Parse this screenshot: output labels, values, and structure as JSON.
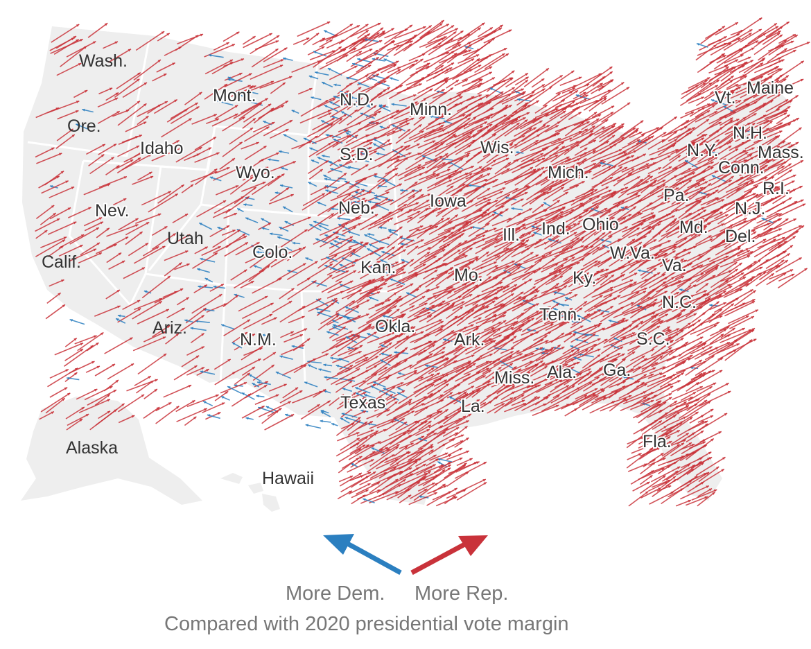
{
  "colors": {
    "land": "#eeeeee",
    "border": "#ffffff",
    "rep": "#c9323a",
    "dem": "#2b7fc0",
    "label": "#333333",
    "caption": "#777777"
  },
  "states": [
    {
      "name": "Wash."
    },
    {
      "name": "Ore."
    },
    {
      "name": "Calif."
    },
    {
      "name": "Nev."
    },
    {
      "name": "Idaho"
    },
    {
      "name": "Mont."
    },
    {
      "name": "Wyo."
    },
    {
      "name": "Utah"
    },
    {
      "name": "Ariz."
    },
    {
      "name": "Colo."
    },
    {
      "name": "N.M."
    },
    {
      "name": "N.D."
    },
    {
      "name": "S.D."
    },
    {
      "name": "Neb."
    },
    {
      "name": "Kan."
    },
    {
      "name": "Okla."
    },
    {
      "name": "Texas"
    },
    {
      "name": "Minn."
    },
    {
      "name": "Iowa"
    },
    {
      "name": "Mo."
    },
    {
      "name": "Ark."
    },
    {
      "name": "La."
    },
    {
      "name": "Wis."
    },
    {
      "name": "Ill."
    },
    {
      "name": "Mich."
    },
    {
      "name": "Ind."
    },
    {
      "name": "Ohio"
    },
    {
      "name": "Ky."
    },
    {
      "name": "Tenn."
    },
    {
      "name": "Miss."
    },
    {
      "name": "Ala."
    },
    {
      "name": "Ga."
    },
    {
      "name": "Fla."
    },
    {
      "name": "S.C."
    },
    {
      "name": "N.C."
    },
    {
      "name": "Va."
    },
    {
      "name": "W.Va."
    },
    {
      "name": "Md."
    },
    {
      "name": "Del."
    },
    {
      "name": "Pa."
    },
    {
      "name": "N.J."
    },
    {
      "name": "N.Y."
    },
    {
      "name": "Conn."
    },
    {
      "name": "R.I."
    },
    {
      "name": "Mass."
    },
    {
      "name": "Vt."
    },
    {
      "name": "N.H."
    },
    {
      "name": "Maine"
    },
    {
      "name": "Alaska"
    },
    {
      "name": "Hawaii"
    }
  ],
  "legend": {
    "dem_label": "More Dem.",
    "rep_label": "More Rep.",
    "caption": "Compared with 2020 presidential vote margin"
  }
}
